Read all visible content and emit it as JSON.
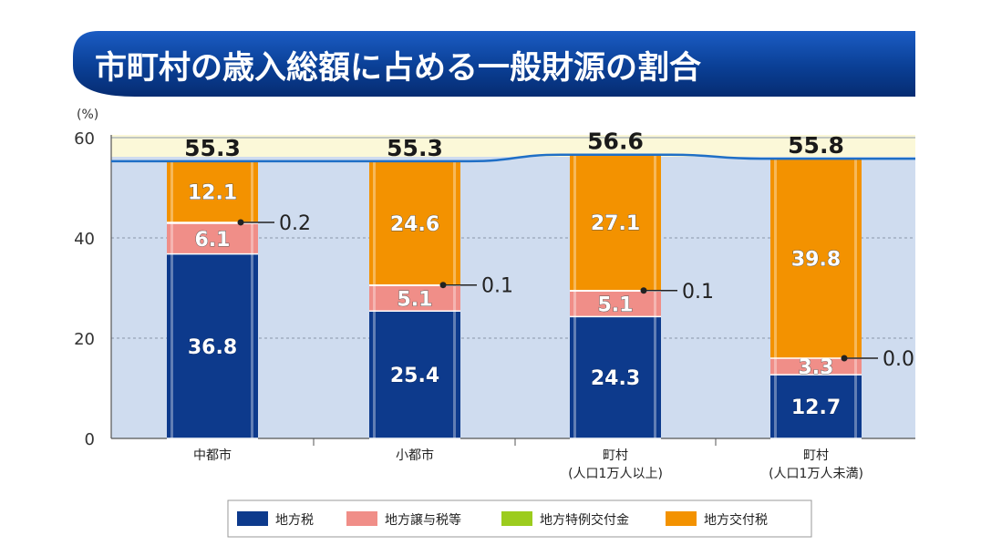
{
  "chart_data": {
    "type": "bar",
    "stacked": true,
    "title": "市町村の歳入総額に占める一般財源の割合",
    "ylabel": "(%)",
    "ylim": [
      0,
      60
    ],
    "yticks": [
      "0",
      "20",
      "40",
      "60"
    ],
    "grid": true,
    "legend_position": "bottom",
    "categories": [
      {
        "line1": "中都市",
        "line2": ""
      },
      {
        "line1": "小都市",
        "line2": ""
      },
      {
        "line1": "町村",
        "line2": "(人口1万人以上)"
      },
      {
        "line1": "町村",
        "line2": "(人口1万人未満)"
      }
    ],
    "totals": [
      "55.3",
      "55.3",
      "56.6",
      "55.8"
    ],
    "series": [
      {
        "name": "地方税",
        "color": "#0d3a8c",
        "values": [
          36.8,
          25.4,
          24.3,
          12.7
        ],
        "labels": [
          "36.8",
          "25.4",
          "24.3",
          "12.7"
        ]
      },
      {
        "name": "地方譲与税等",
        "color": "#f08e88",
        "values": [
          6.1,
          5.1,
          5.1,
          3.3
        ],
        "labels": [
          "6.1",
          "5.1",
          "5.1",
          "3.3"
        ]
      },
      {
        "name": "地方特例交付金",
        "color": "#9ccc1e",
        "values": [
          0.2,
          0.1,
          0.1,
          0.0
        ],
        "labels": [
          "0.2",
          "0.1",
          "0.1",
          "0.0"
        ]
      },
      {
        "name": "地方交付税",
        "color": "#f39200",
        "values": [
          12.1,
          24.6,
          27.1,
          39.8
        ],
        "labels": [
          "12.1",
          "24.6",
          "27.1",
          "39.8"
        ]
      }
    ]
  },
  "colors": {
    "banner": "#0a3f95",
    "plot_bg": "#cfdcef",
    "top_band": "#fbf8d8",
    "total_line": "#1f6fc6"
  }
}
